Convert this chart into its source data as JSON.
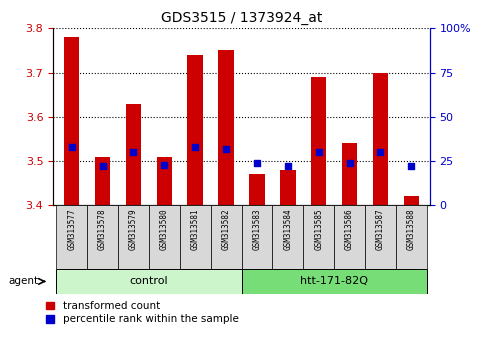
{
  "title": "GDS3515 / 1373924_at",
  "samples": [
    "GSM313577",
    "GSM313578",
    "GSM313579",
    "GSM313580",
    "GSM313581",
    "GSM313582",
    "GSM313583",
    "GSM313584",
    "GSM313585",
    "GSM313586",
    "GSM313587",
    "GSM313588"
  ],
  "transformed_count": [
    3.78,
    3.51,
    3.63,
    3.51,
    3.74,
    3.75,
    3.47,
    3.48,
    3.69,
    3.54,
    3.7,
    3.42
  ],
  "percentile_rank": [
    33,
    22,
    30,
    23,
    33,
    32,
    24,
    22,
    30,
    24,
    30,
    22
  ],
  "groups": [
    {
      "label": "control",
      "start": 0,
      "end": 5,
      "color": "#ccf5cc"
    },
    {
      "label": "htt-171-82Q",
      "start": 6,
      "end": 11,
      "color": "#77dd77"
    }
  ],
  "ylim_left": [
    3.4,
    3.8
  ],
  "ylim_right": [
    0,
    100
  ],
  "yticks_left": [
    3.4,
    3.5,
    3.6,
    3.7,
    3.8
  ],
  "yticks_right": [
    0,
    25,
    50,
    75,
    100
  ],
  "bar_color": "#cc0000",
  "dot_color": "#0000cc",
  "bar_width": 0.5,
  "dot_size": 18,
  "legend_items": [
    {
      "label": "transformed count",
      "color": "#cc0000"
    },
    {
      "label": "percentile rank within the sample",
      "color": "#0000cc"
    }
  ],
  "agent_label": "agent",
  "background_color": "#ffffff",
  "tick_label_color_left": "#cc0000",
  "tick_label_color_right": "#0000cc"
}
